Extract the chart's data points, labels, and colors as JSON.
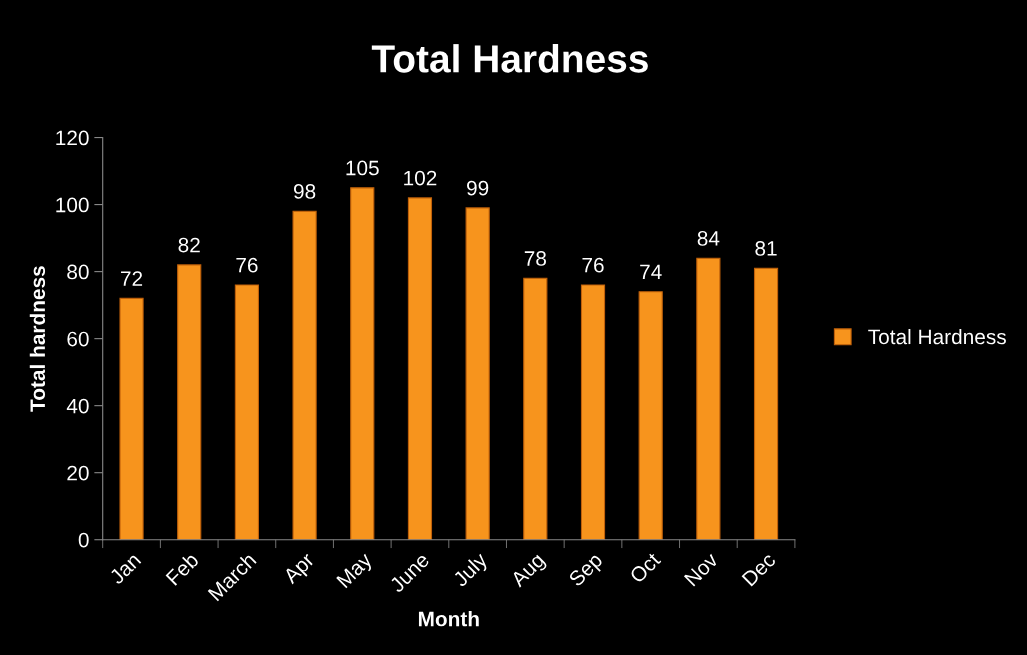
{
  "chart_data": {
    "type": "bar",
    "title": "Total Hardness",
    "xlabel": "Month",
    "ylabel": "Total hardness",
    "categories": [
      "Jan",
      "Feb",
      "March",
      "Apr",
      "May",
      "June",
      "July",
      "Aug",
      "Sep",
      "Oct",
      "Nov",
      "Dec"
    ],
    "series": [
      {
        "name": "Total Hardness",
        "color": "#f7941d",
        "values": [
          72,
          82,
          76,
          98,
          105,
          102,
          99,
          78,
          76,
          74,
          84,
          81
        ]
      }
    ],
    "ylim": [
      0,
      120
    ],
    "yticks": [
      0,
      20,
      40,
      60,
      80,
      100,
      120
    ],
    "grid": false,
    "legend": "right",
    "data_labels": true
  }
}
